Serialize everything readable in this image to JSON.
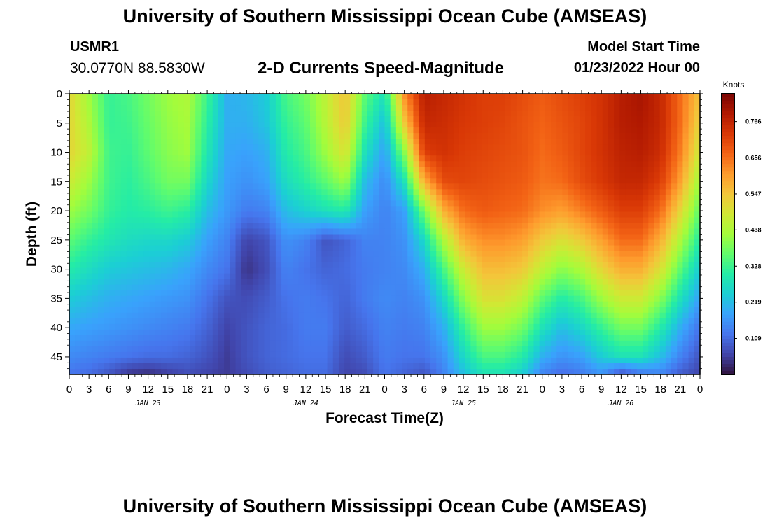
{
  "header": {
    "title": "University of Southern Mississippi Ocean Cube (AMSEAS)",
    "station": "USMR1",
    "coordinates": "30.0770N  88.5830W",
    "subtitle": "2-D Currents Speed-Magnitude",
    "model_start_label": "Model Start Time",
    "model_start_value": "01/23/2022 Hour 00"
  },
  "footer": {
    "title": "University of Southern Mississippi Ocean Cube (AMSEAS)"
  },
  "chart_data": {
    "type": "heatmap",
    "title": "2-D Currents Speed-Magnitude",
    "xlabel": "Forecast Time(Z)",
    "ylabel": "Depth (ft)",
    "x_range_hours": [
      0,
      96
    ],
    "x_tick_labels": [
      "0",
      "3",
      "6",
      "9",
      "12",
      "15",
      "18",
      "21",
      "0",
      "3",
      "6",
      "9",
      "12",
      "15",
      "18",
      "21",
      "0",
      "3",
      "6",
      "9",
      "12",
      "15",
      "18",
      "21",
      "0",
      "3",
      "6",
      "9",
      "12",
      "15",
      "18",
      "21",
      "0"
    ],
    "date_labels": [
      {
        "text": "JAN 23",
        "hour": 12
      },
      {
        "text": "JAN 24",
        "hour": 36
      },
      {
        "text": "JAN 25",
        "hour": 60
      },
      {
        "text": "JAN 26",
        "hour": 84
      }
    ],
    "y_range_ft": [
      0,
      48
    ],
    "y_ticks": [
      0,
      5,
      10,
      15,
      20,
      25,
      30,
      35,
      40,
      45
    ],
    "colorbar": {
      "unit": "Knots",
      "range": [
        0.0,
        0.85
      ],
      "ticks": [
        0.109,
        0.219,
        0.328,
        0.438,
        0.547,
        0.656,
        0.766
      ],
      "tick_labels": [
        "0.109",
        "0.219",
        "0.328",
        "0.438",
        "0.547",
        "0.656",
        "0.766"
      ],
      "colors": [
        "#30123b",
        "#4145ab",
        "#4675ed",
        "#39a2fc",
        "#1bcfd4",
        "#24eca6",
        "#61fc6c",
        "#a4fc3b",
        "#d1e834",
        "#f3c63a",
        "#fe9b2d",
        "#f36315",
        "#d93806",
        "#b11901",
        "#7a0403"
      ]
    },
    "depths_ft": [
      0,
      5,
      10,
      15,
      20,
      25,
      30,
      35,
      40,
      45,
      48
    ],
    "hours": [
      0,
      3,
      6,
      9,
      12,
      15,
      18,
      21,
      24,
      27,
      30,
      33,
      36,
      39,
      42,
      45,
      48,
      51,
      54,
      57,
      60,
      63,
      66,
      69,
      72,
      75,
      78,
      81,
      84,
      87,
      90,
      93,
      96
    ],
    "speed_knots": [
      [
        0.52,
        0.42,
        0.32,
        0.34,
        0.38,
        0.42,
        0.44,
        0.33,
        0.2,
        0.21,
        0.24,
        0.34,
        0.38,
        0.46,
        0.55,
        0.36,
        0.28,
        0.62,
        0.78,
        0.76,
        0.74,
        0.72,
        0.72,
        0.7,
        0.68,
        0.7,
        0.72,
        0.74,
        0.78,
        0.8,
        0.76,
        0.66,
        0.55
      ],
      [
        0.52,
        0.44,
        0.32,
        0.33,
        0.37,
        0.41,
        0.43,
        0.31,
        0.2,
        0.2,
        0.23,
        0.32,
        0.36,
        0.45,
        0.54,
        0.33,
        0.22,
        0.54,
        0.76,
        0.75,
        0.73,
        0.72,
        0.71,
        0.69,
        0.67,
        0.69,
        0.71,
        0.74,
        0.78,
        0.79,
        0.76,
        0.66,
        0.52
      ],
      [
        0.52,
        0.46,
        0.33,
        0.32,
        0.36,
        0.4,
        0.42,
        0.29,
        0.19,
        0.18,
        0.2,
        0.3,
        0.34,
        0.42,
        0.5,
        0.28,
        0.18,
        0.4,
        0.72,
        0.74,
        0.72,
        0.71,
        0.7,
        0.69,
        0.66,
        0.68,
        0.71,
        0.74,
        0.77,
        0.78,
        0.75,
        0.64,
        0.48
      ],
      [
        0.48,
        0.42,
        0.33,
        0.31,
        0.34,
        0.38,
        0.38,
        0.26,
        0.18,
        0.16,
        0.18,
        0.27,
        0.31,
        0.36,
        0.42,
        0.22,
        0.15,
        0.28,
        0.58,
        0.7,
        0.71,
        0.7,
        0.69,
        0.68,
        0.65,
        0.66,
        0.7,
        0.73,
        0.76,
        0.76,
        0.72,
        0.6,
        0.42
      ],
      [
        0.42,
        0.38,
        0.32,
        0.3,
        0.31,
        0.33,
        0.31,
        0.22,
        0.17,
        0.13,
        0.14,
        0.22,
        0.25,
        0.28,
        0.3,
        0.18,
        0.14,
        0.18,
        0.38,
        0.58,
        0.66,
        0.68,
        0.67,
        0.66,
        0.62,
        0.6,
        0.64,
        0.68,
        0.72,
        0.72,
        0.66,
        0.52,
        0.36
      ],
      [
        0.36,
        0.32,
        0.29,
        0.27,
        0.26,
        0.26,
        0.24,
        0.18,
        0.14,
        0.06,
        0.08,
        0.16,
        0.14,
        0.08,
        0.1,
        0.14,
        0.14,
        0.16,
        0.26,
        0.44,
        0.58,
        0.62,
        0.62,
        0.6,
        0.54,
        0.5,
        0.54,
        0.6,
        0.66,
        0.66,
        0.58,
        0.44,
        0.3
      ],
      [
        0.3,
        0.27,
        0.24,
        0.23,
        0.22,
        0.21,
        0.19,
        0.15,
        0.12,
        0.04,
        0.07,
        0.14,
        0.12,
        0.1,
        0.11,
        0.13,
        0.14,
        0.15,
        0.2,
        0.34,
        0.48,
        0.56,
        0.56,
        0.54,
        0.46,
        0.4,
        0.44,
        0.52,
        0.58,
        0.58,
        0.5,
        0.36,
        0.24
      ],
      [
        0.24,
        0.22,
        0.2,
        0.19,
        0.18,
        0.17,
        0.16,
        0.12,
        0.08,
        0.07,
        0.09,
        0.12,
        0.13,
        0.12,
        0.1,
        0.13,
        0.15,
        0.14,
        0.16,
        0.26,
        0.4,
        0.5,
        0.5,
        0.46,
        0.36,
        0.3,
        0.34,
        0.42,
        0.48,
        0.48,
        0.4,
        0.28,
        0.18
      ],
      [
        0.19,
        0.18,
        0.17,
        0.16,
        0.15,
        0.14,
        0.13,
        0.1,
        0.06,
        0.08,
        0.1,
        0.11,
        0.13,
        0.13,
        0.09,
        0.11,
        0.14,
        0.13,
        0.14,
        0.2,
        0.32,
        0.42,
        0.42,
        0.38,
        0.28,
        0.22,
        0.26,
        0.32,
        0.38,
        0.38,
        0.3,
        0.2,
        0.12
      ],
      [
        0.15,
        0.14,
        0.13,
        0.12,
        0.11,
        0.11,
        0.1,
        0.08,
        0.05,
        0.08,
        0.1,
        0.11,
        0.12,
        0.12,
        0.07,
        0.09,
        0.13,
        0.12,
        0.12,
        0.16,
        0.26,
        0.34,
        0.34,
        0.3,
        0.2,
        0.16,
        0.18,
        0.24,
        0.28,
        0.28,
        0.22,
        0.14,
        0.08
      ],
      [
        0.12,
        0.11,
        0.08,
        0.04,
        0.03,
        0.05,
        0.07,
        0.06,
        0.05,
        0.07,
        0.09,
        0.1,
        0.11,
        0.11,
        0.06,
        0.07,
        0.12,
        0.1,
        0.08,
        0.14,
        0.22,
        0.28,
        0.28,
        0.24,
        0.14,
        0.11,
        0.13,
        0.16,
        0.07,
        0.12,
        0.14,
        0.09,
        0.06
      ]
    ]
  }
}
